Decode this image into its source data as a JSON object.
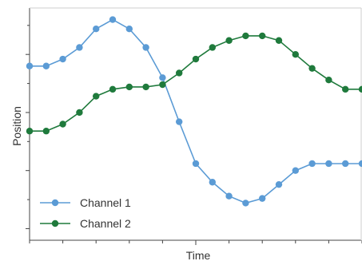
{
  "chart_data": {
    "type": "line",
    "title": "",
    "xlabel": "Time",
    "ylabel": "Position",
    "x": [
      0,
      1,
      2,
      3,
      4,
      5,
      6,
      7,
      8,
      9,
      10,
      11,
      12,
      13,
      14,
      15,
      16,
      17,
      18,
      19,
      20
    ],
    "xlim": [
      0,
      20
    ],
    "ylim": [
      -3.5,
      6.5
    ],
    "grid": false,
    "legend_position": "bottom-left",
    "series": [
      {
        "name": "Channel 1",
        "color": "#5b9bd5",
        "values": [
          4.0,
          4.0,
          4.3,
          4.8,
          5.6,
          6.0,
          5.6,
          4.8,
          3.5,
          1.6,
          -0.2,
          -1.0,
          -1.6,
          -1.9,
          -1.7,
          -1.1,
          -0.5,
          -0.2,
          -0.2,
          -0.2,
          -0.2
        ]
      },
      {
        "name": "Channel 2",
        "color": "#1f7a3c",
        "values": [
          1.2,
          1.2,
          1.5,
          2.0,
          2.7,
          3.0,
          3.1,
          3.1,
          3.2,
          3.7,
          4.3,
          4.8,
          5.1,
          5.3,
          5.3,
          5.1,
          4.5,
          3.9,
          3.4,
          3.0,
          3.0
        ]
      }
    ]
  }
}
